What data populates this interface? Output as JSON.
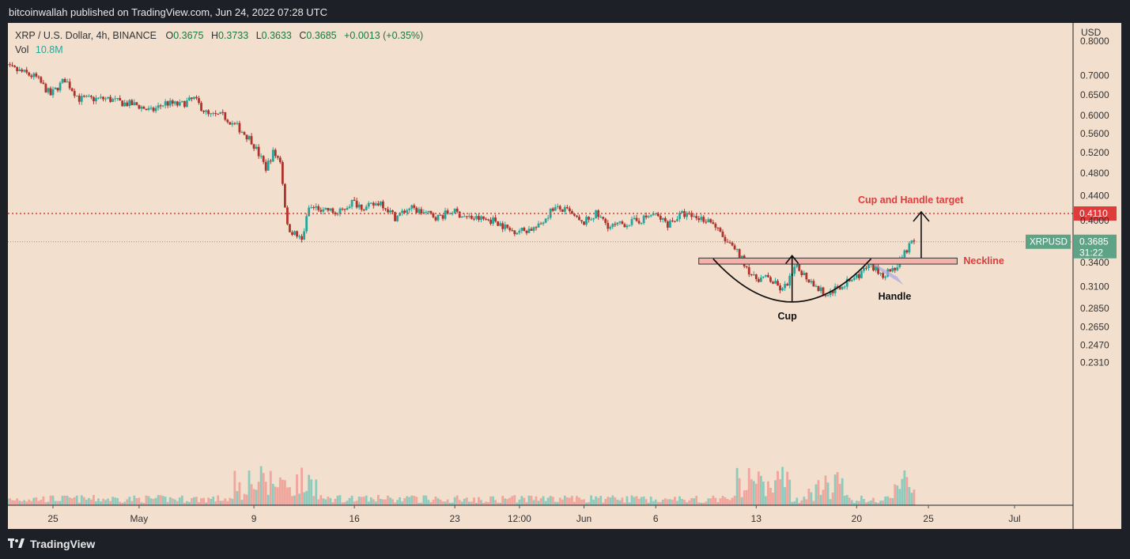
{
  "header": {
    "published": "bitcoinwallah published on TradingView.com, Jun 24, 2022 07:28 UTC"
  },
  "legend": {
    "symbol": "XRP / U.S. Dollar, 4h, BINANCE",
    "o_label": "O",
    "o": "0.3675",
    "h_label": "H",
    "h": "0.3733",
    "l_label": "L",
    "l": "0.3633",
    "c_label": "C",
    "c": "0.3685",
    "change": "+0.0013 (+0.35%)",
    "vol_label": "Vol",
    "vol": "10.8M"
  },
  "footer": {
    "brand": "TradingView"
  },
  "colors": {
    "background": "#f2dfcd",
    "up": "#26a69a",
    "down": "#b0322c",
    "target": "#e03b3b",
    "frame": "#1e2027"
  },
  "chart_data": {
    "type": "candlestick",
    "symbol": "XRPUSD",
    "interval": "4h",
    "scale": "log",
    "currency_label": "USD",
    "y_ticks": [
      "0.8000",
      "0.7000",
      "0.6500",
      "0.6000",
      "0.5600",
      "0.5200",
      "0.4800",
      "0.4400",
      "0.4000",
      "0.3400",
      "0.3100",
      "0.2850",
      "0.2650",
      "0.2470",
      "0.2310"
    ],
    "x_ticks": [
      {
        "label": "25",
        "date": "2022-04-25"
      },
      {
        "label": "May",
        "date": "2022-05-01"
      },
      {
        "label": "9",
        "date": "2022-05-09"
      },
      {
        "label": "16",
        "date": "2022-05-16"
      },
      {
        "label": "23",
        "date": "2022-05-23"
      },
      {
        "label": "12:00",
        "date": "2022-05-27 12:00"
      },
      {
        "label": "Jun",
        "date": "2022-06-01"
      },
      {
        "label": "6",
        "date": "2022-06-06"
      },
      {
        "label": "13",
        "date": "2022-06-13"
      },
      {
        "label": "20",
        "date": "2022-06-20"
      },
      {
        "label": "25",
        "date": "2022-06-25"
      },
      {
        "label": "Jul",
        "date": "2022-07-01"
      }
    ],
    "price_path": [
      [
        "2022-04-21",
        0.735
      ],
      [
        "2022-04-23",
        0.71
      ],
      [
        "2022-04-24",
        0.695
      ],
      [
        "2022-04-25",
        0.65
      ],
      [
        "2022-04-26",
        0.69
      ],
      [
        "2022-04-27",
        0.64
      ],
      [
        "2022-04-29",
        0.64
      ],
      [
        "2022-04-30",
        0.63
      ],
      [
        "2022-05-01",
        0.625
      ],
      [
        "2022-05-02",
        0.61
      ],
      [
        "2022-05-03",
        0.63
      ],
      [
        "2022-05-04",
        0.625
      ],
      [
        "2022-05-05",
        0.64
      ],
      [
        "2022-05-06",
        0.6
      ],
      [
        "2022-05-07",
        0.6
      ],
      [
        "2022-05-08",
        0.575
      ],
      [
        "2022-05-09",
        0.545
      ],
      [
        "2022-05-10",
        0.49
      ],
      [
        "2022-05-10 12:00",
        0.52
      ],
      [
        "2022-05-11",
        0.505
      ],
      [
        "2022-05-11 12:00",
        0.39
      ],
      [
        "2022-05-12",
        0.38
      ],
      [
        "2022-05-12 12:00",
        0.37
      ],
      [
        "2022-05-13",
        0.42
      ],
      [
        "2022-05-14",
        0.42
      ],
      [
        "2022-05-15",
        0.41
      ],
      [
        "2022-05-16",
        0.43
      ],
      [
        "2022-05-17",
        0.42
      ],
      [
        "2022-05-18",
        0.43
      ],
      [
        "2022-05-19",
        0.405
      ],
      [
        "2022-05-20",
        0.42
      ],
      [
        "2022-05-22",
        0.405
      ],
      [
        "2022-05-23",
        0.415
      ],
      [
        "2022-05-24",
        0.405
      ],
      [
        "2022-05-26",
        0.4
      ],
      [
        "2022-05-27",
        0.385
      ],
      [
        "2022-05-28",
        0.385
      ],
      [
        "2022-05-29",
        0.39
      ],
      [
        "2022-05-30",
        0.42
      ],
      [
        "2022-05-31",
        0.415
      ],
      [
        "2022-06-01",
        0.395
      ],
      [
        "2022-06-02",
        0.41
      ],
      [
        "2022-06-03",
        0.39
      ],
      [
        "2022-06-04",
        0.395
      ],
      [
        "2022-06-05",
        0.4
      ],
      [
        "2022-06-06",
        0.41
      ],
      [
        "2022-06-07",
        0.395
      ],
      [
        "2022-06-08",
        0.41
      ],
      [
        "2022-06-09",
        0.405
      ],
      [
        "2022-06-10",
        0.4
      ],
      [
        "2022-06-11",
        0.37
      ],
      [
        "2022-06-12",
        0.35
      ],
      [
        "2022-06-13",
        0.32
      ],
      [
        "2022-06-14",
        0.32
      ],
      [
        "2022-06-15",
        0.305
      ],
      [
        "2022-06-16",
        0.335
      ],
      [
        "2022-06-17",
        0.315
      ],
      [
        "2022-06-18",
        0.3
      ],
      [
        "2022-06-19",
        0.31
      ],
      [
        "2022-06-20",
        0.32
      ],
      [
        "2022-06-21",
        0.335
      ],
      [
        "2022-06-22",
        0.325
      ],
      [
        "2022-06-23",
        0.335
      ],
      [
        "2022-06-24",
        0.3685
      ]
    ],
    "last_price": "0.3685",
    "last_price_label": "XRPUSD",
    "countdown": "31:22",
    "target_price": "0.4110",
    "volume_spike_dates": [
      "2022-05-09",
      "2022-05-11",
      "2022-05-12",
      "2022-06-13",
      "2022-06-14",
      "2022-06-18",
      "2022-06-24"
    ],
    "annotations": {
      "target_label": "Cup and Handle target",
      "neckline_label": "Neckline",
      "cup_label": "Cup",
      "handle_label": "Handle",
      "neckline_range": [
        0.338,
        0.346
      ],
      "neckline_dates": [
        "2022-06-09",
        "2022-06-27"
      ],
      "cup_dates": [
        "2022-06-10",
        "2022-06-21"
      ],
      "cup_low": 0.292
    }
  }
}
